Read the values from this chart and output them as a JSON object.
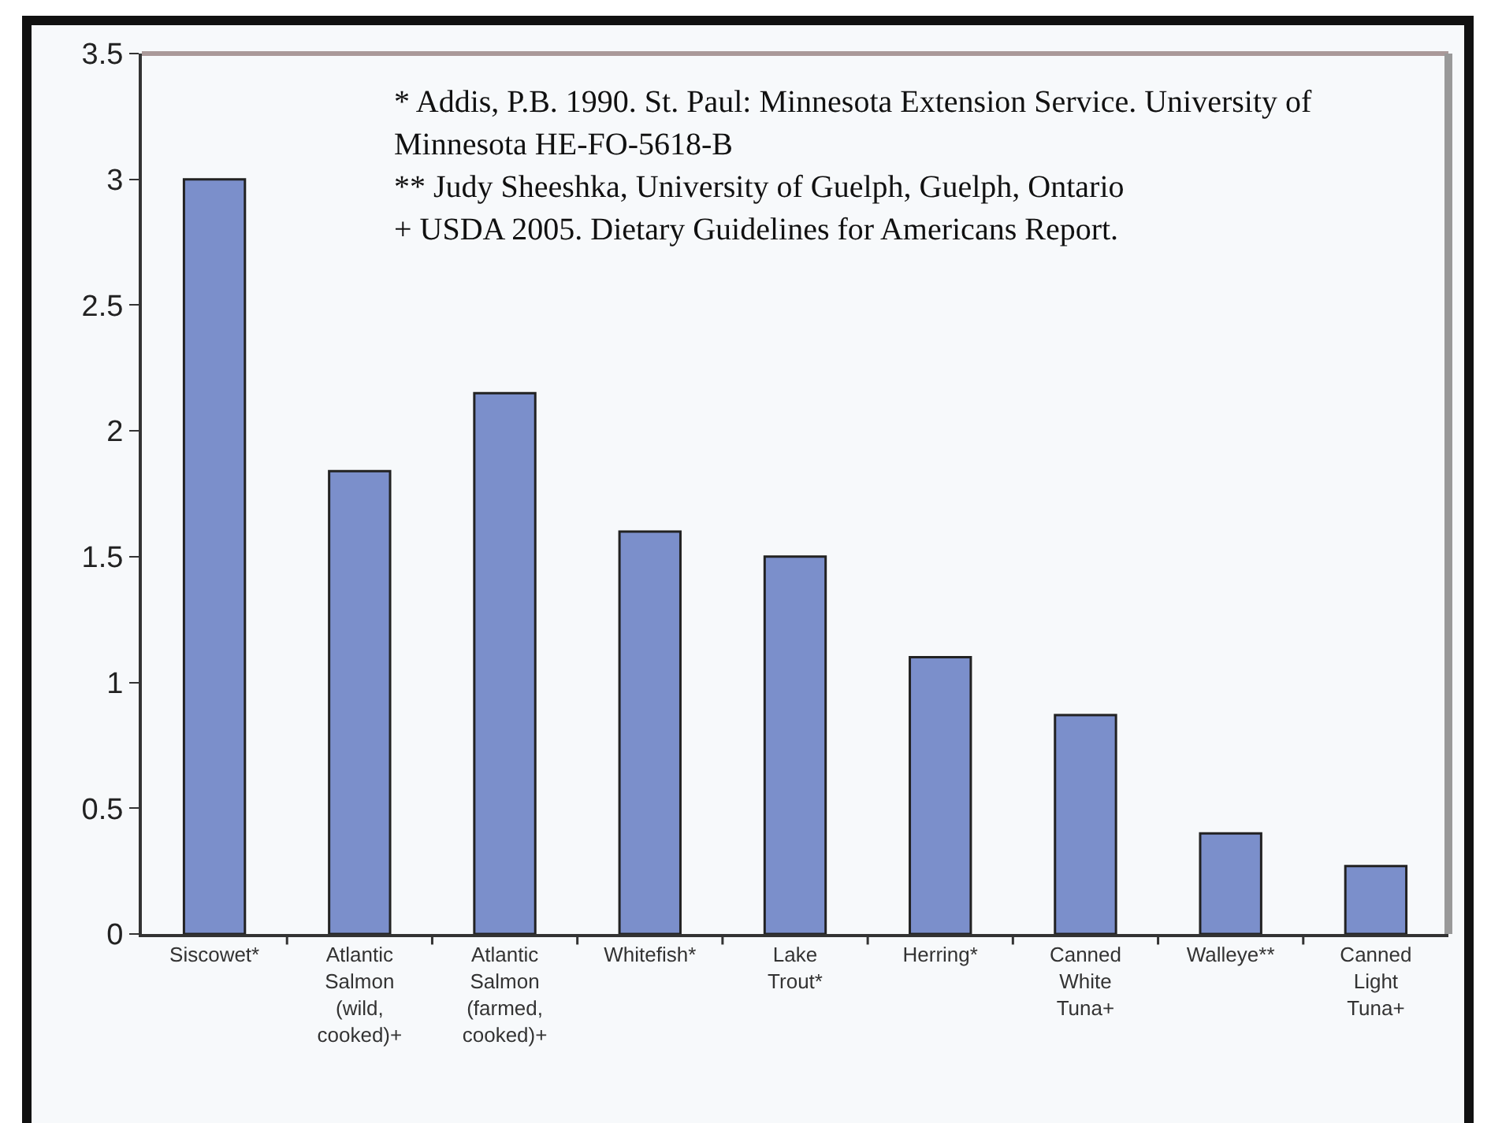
{
  "chart_data": {
    "type": "bar",
    "categories": [
      "Siscowet*",
      "Atlantic Salmon (wild, cooked)+",
      "Atlantic Salmon (farmed, cooked)+",
      "Whitefish*",
      "Lake Trout*",
      "Herring*",
      "Canned White Tuna+",
      "Walleye**",
      "Canned Light Tuna+"
    ],
    "values": [
      3.0,
      1.84,
      2.15,
      1.6,
      1.5,
      1.1,
      0.87,
      0.4,
      0.27
    ],
    "color": "#7b8fcb",
    "ylim": [
      0,
      3.5
    ],
    "yticks": [
      0,
      0.5,
      1,
      1.5,
      2,
      2.5,
      3,
      3.5
    ],
    "grid": false,
    "annotations": [
      "* Addis, P.B. 1990. St. Paul: Minnesota Extension Service. University of Minnesota HE-FO-5618-B",
      "** Judy Sheeshka, University of Guelph, Guelph, Ontario",
      "+ USDA 2005. Dietary Guidelines for Americans Report."
    ]
  }
}
